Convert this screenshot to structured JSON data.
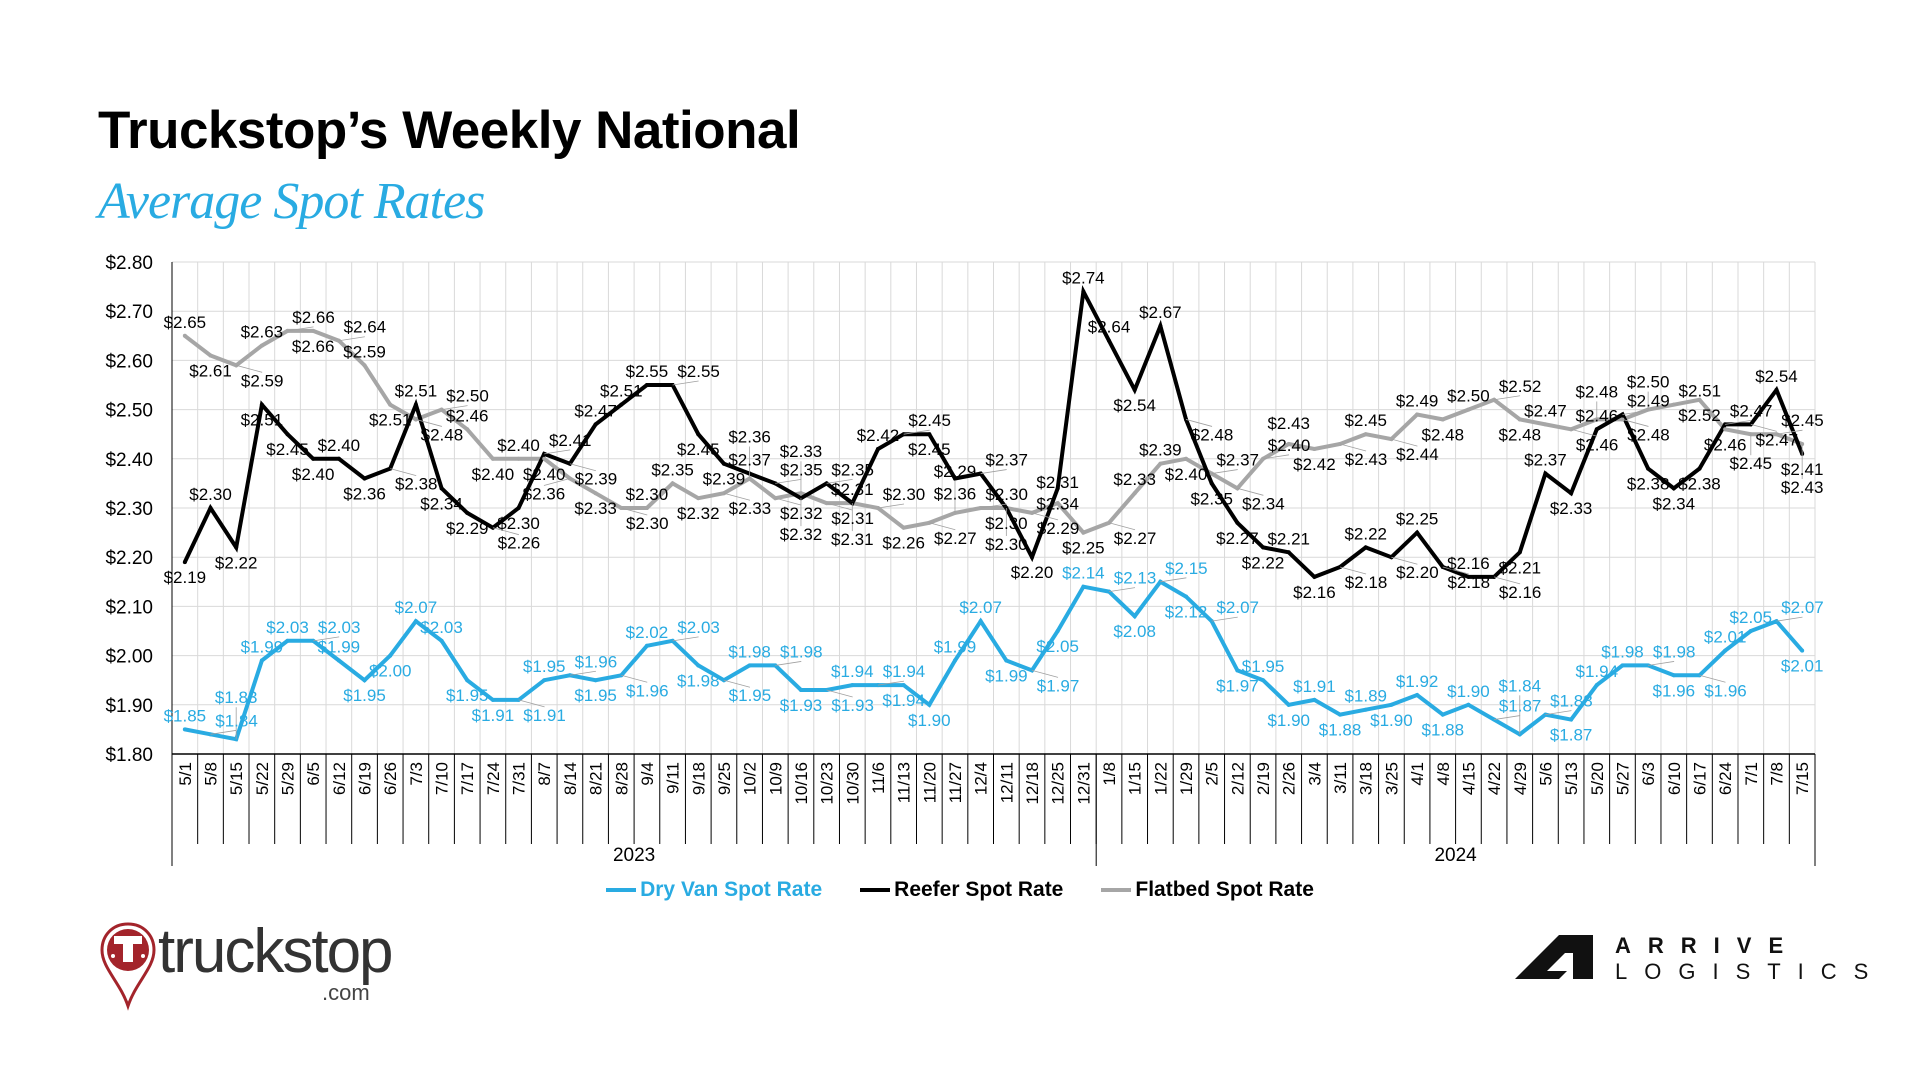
{
  "header": {
    "title": "Truckstop’s Weekly National",
    "subtitle": "Average Spot Rates"
  },
  "chart_data": {
    "type": "line",
    "title": "Truckstop’s Weekly National Average Spot Rates",
    "xlabel": "",
    "ylabel": "",
    "ylim": [
      1.8,
      2.8
    ],
    "y_ticks": [
      "$1.80",
      "$1.90",
      "$2.00",
      "$2.10",
      "$2.20",
      "$2.30",
      "$2.40",
      "$2.50",
      "$2.60",
      "$2.70",
      "$2.80"
    ],
    "grid": true,
    "legend_position": "bottom",
    "years": [
      {
        "label": "2023",
        "count": 36
      },
      {
        "label": "2024",
        "count": 28
      }
    ],
    "categories": [
      "5/1",
      "5/8",
      "5/15",
      "5/22",
      "5/29",
      "6/5",
      "6/12",
      "6/19",
      "6/26",
      "7/3",
      "7/10",
      "7/17",
      "7/24",
      "7/31",
      "8/7",
      "8/14",
      "8/21",
      "8/28",
      "9/4",
      "9/11",
      "9/18",
      "9/25",
      "10/2",
      "10/9",
      "10/16",
      "10/23",
      "10/30",
      "11/6",
      "11/13",
      "11/20",
      "11/27",
      "12/4",
      "12/11",
      "12/18",
      "12/25",
      "12/31",
      "1/8",
      "1/15",
      "1/22",
      "1/29",
      "2/5",
      "2/12",
      "2/19",
      "2/26",
      "3/4",
      "3/11",
      "3/18",
      "3/25",
      "4/1",
      "4/8",
      "4/15",
      "4/22",
      "4/29",
      "5/6",
      "5/13",
      "5/20",
      "5/27",
      "6/3",
      "6/10",
      "6/17",
      "6/24",
      "7/1",
      "7/8",
      "7/15"
    ],
    "series": [
      {
        "name": "Dry Van Spot Rate",
        "color": "#29abe2",
        "label_color": "#29abe2",
        "values": [
          1.85,
          1.84,
          1.83,
          1.99,
          2.03,
          2.03,
          1.99,
          1.95,
          2.0,
          2.07,
          2.03,
          1.95,
          1.91,
          1.91,
          1.95,
          1.96,
          1.95,
          1.96,
          2.02,
          2.03,
          1.98,
          1.95,
          1.98,
          1.98,
          1.93,
          1.93,
          1.94,
          1.94,
          1.94,
          1.9,
          1.99,
          2.07,
          1.99,
          1.97,
          2.05,
          2.14,
          2.13,
          2.08,
          2.15,
          2.12,
          2.07,
          1.97,
          1.95,
          1.9,
          1.91,
          1.88,
          1.89,
          1.9,
          1.92,
          1.88,
          1.9,
          1.87,
          1.84,
          1.88,
          1.87,
          1.94,
          1.98,
          1.98,
          1.96,
          1.96,
          2.01,
          2.05,
          2.07,
          2.01
        ]
      },
      {
        "name": "Reefer Spot Rate",
        "color": "#000000",
        "label_color": "#000000",
        "values": [
          2.19,
          2.3,
          2.22,
          2.51,
          2.45,
          2.4,
          2.4,
          2.36,
          2.38,
          2.51,
          2.34,
          2.29,
          2.26,
          2.3,
          2.41,
          2.39,
          2.47,
          2.51,
          2.55,
          2.55,
          2.45,
          2.39,
          2.37,
          2.35,
          2.32,
          2.35,
          2.31,
          2.42,
          2.45,
          2.45,
          2.36,
          2.37,
          2.3,
          2.2,
          2.34,
          2.74,
          2.64,
          2.54,
          2.67,
          2.48,
          2.35,
          2.27,
          2.22,
          2.21,
          2.16,
          2.18,
          2.22,
          2.2,
          2.25,
          2.18,
          2.16,
          2.16,
          2.21,
          2.37,
          2.33,
          2.46,
          2.49,
          2.38,
          2.34,
          2.38,
          2.47,
          2.47,
          2.54,
          2.41
        ]
      },
      {
        "name": "Flatbed Spot Rate",
        "color": "#a6a6a6",
        "label_color": "#000000",
        "values": [
          2.65,
          2.61,
          2.59,
          2.63,
          2.66,
          2.66,
          2.64,
          2.59,
          2.51,
          2.48,
          2.5,
          2.46,
          2.4,
          2.4,
          2.4,
          2.36,
          2.33,
          2.3,
          2.3,
          2.35,
          2.32,
          2.33,
          2.36,
          2.32,
          2.33,
          2.31,
          2.31,
          2.3,
          2.26,
          2.27,
          2.29,
          2.3,
          2.3,
          2.29,
          2.31,
          2.25,
          2.27,
          2.33,
          2.39,
          2.4,
          2.37,
          2.34,
          2.4,
          2.43,
          2.42,
          2.43,
          2.45,
          2.44,
          2.49,
          2.48,
          2.5,
          2.52,
          2.48,
          2.47,
          2.46,
          2.48,
          2.48,
          2.5,
          2.51,
          2.52,
          2.46,
          2.45,
          2.45,
          2.43
        ]
      }
    ]
  },
  "logos": {
    "truckstop": "truckstop",
    "truckstop_suffix": ".com",
    "arrive_top": "ARRIVE",
    "arrive_bottom": "LOGISTICS"
  }
}
